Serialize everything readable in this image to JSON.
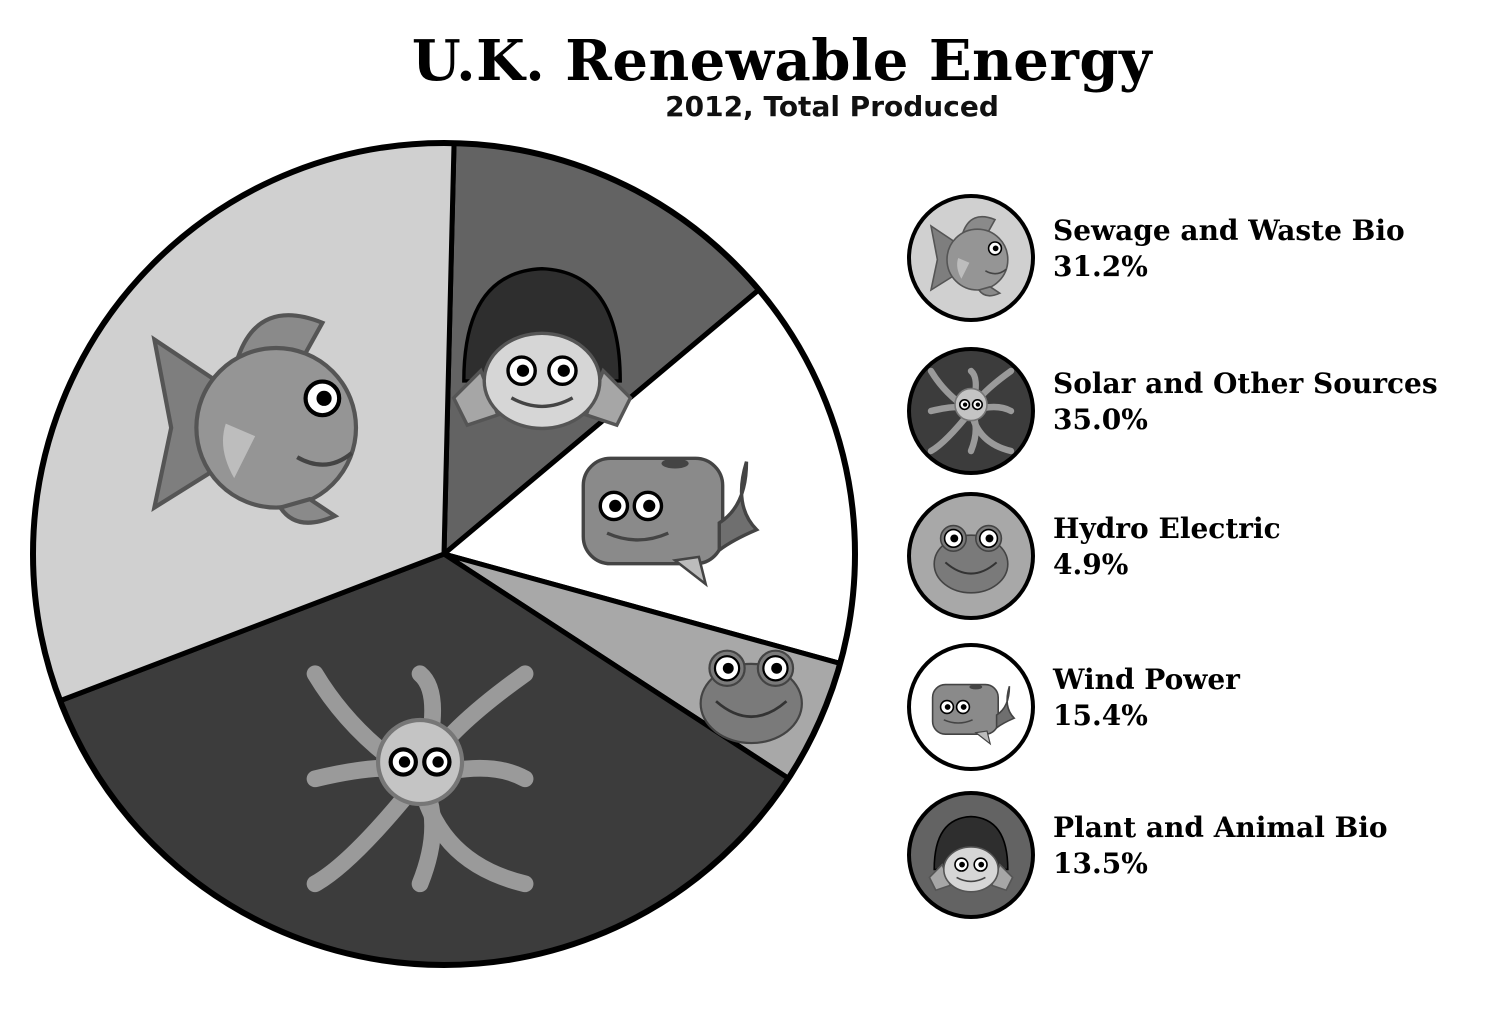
{
  "chart_data": {
    "type": "pie",
    "title": "U.K. Renewable Energy",
    "subtitle": "2012, Total Produced",
    "slices": [
      {
        "label": "Sewage and Waste Bio",
        "value": 31.2,
        "value_label": "31.2%",
        "color": "#d0d0d0",
        "icon": "fish-icon"
      },
      {
        "label": "Solar and Other Sources",
        "value": 35.0,
        "value_label": "35.0%",
        "color": "#3c3c3c",
        "icon": "octopus-icon"
      },
      {
        "label": "Hydro Electric",
        "value": 4.9,
        "value_label": "4.9%",
        "color": "#a8a8a8",
        "icon": "frog-icon"
      },
      {
        "label": "Wind Power",
        "value": 15.4,
        "value_label": "15.4%",
        "color": "#ffffff",
        "icon": "whale-icon"
      },
      {
        "label": "Plant and Animal Bio",
        "value": 13.5,
        "value_label": "13.5%",
        "color": "#636363",
        "icon": "turtle-icon"
      }
    ],
    "legend_position": "right"
  }
}
